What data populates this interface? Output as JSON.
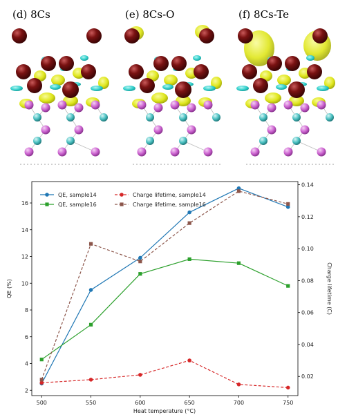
{
  "panels": [
    {
      "label": "(d) 8Cs"
    },
    {
      "label": "(e) 8Cs-O"
    },
    {
      "label": "(f) 8Cs-Te"
    }
  ],
  "colors": {
    "cs": "#7a1212",
    "isosurface_yellow": "#e8ef1e",
    "isosurface_cyan": "#37d3d0",
    "atom_magenta": "#d46bd8",
    "atom_teal": "#4fc4c4",
    "qe14": "#1f77b4",
    "qe16": "#2ca02c",
    "life14": "#d62728",
    "life16": "#8c564b"
  },
  "chart_data": {
    "type": "line",
    "x": [
      500,
      550,
      600,
      650,
      700,
      750
    ],
    "xticks": [
      "500",
      "550",
      "600",
      "650",
      "700",
      "750"
    ],
    "xlabel": "Heat temperature (°C)",
    "ylabel": "QE (%)",
    "ylabel_right": "Charge lifetime (C)",
    "ylim": [
      1.6,
      17.6
    ],
    "ylim_right": [
      0.008,
      0.142
    ],
    "yticks": [
      "2",
      "4",
      "6",
      "8",
      "10",
      "12",
      "14",
      "16"
    ],
    "yticks_right": [
      "0.02",
      "0.04",
      "0.06",
      "0.08",
      "0.10",
      "0.12",
      "0.14"
    ],
    "legend_position": "top-left",
    "series": [
      {
        "name": "QE, sample14",
        "axis": "left",
        "style": "solid",
        "marker": "circle",
        "color": "#1f77b4",
        "values": [
          2.5,
          9.5,
          11.9,
          15.3,
          17.1,
          15.7
        ]
      },
      {
        "name": "QE, sample16",
        "axis": "left",
        "style": "solid",
        "marker": "square",
        "color": "#2ca02c",
        "values": [
          4.3,
          6.9,
          10.7,
          11.8,
          11.5,
          9.8
        ]
      },
      {
        "name": "Charge lifetime, sample14",
        "axis": "right",
        "style": "dashed",
        "marker": "circle",
        "color": "#d62728",
        "values": [
          0.016,
          0.018,
          0.021,
          0.03,
          0.015,
          0.013
        ]
      },
      {
        "name": "Charge lifetime, sample16",
        "axis": "right",
        "style": "dashed",
        "marker": "square",
        "color": "#8c564b",
        "values": [
          0.018,
          0.103,
          0.092,
          0.116,
          0.136,
          0.128
        ]
      }
    ]
  }
}
